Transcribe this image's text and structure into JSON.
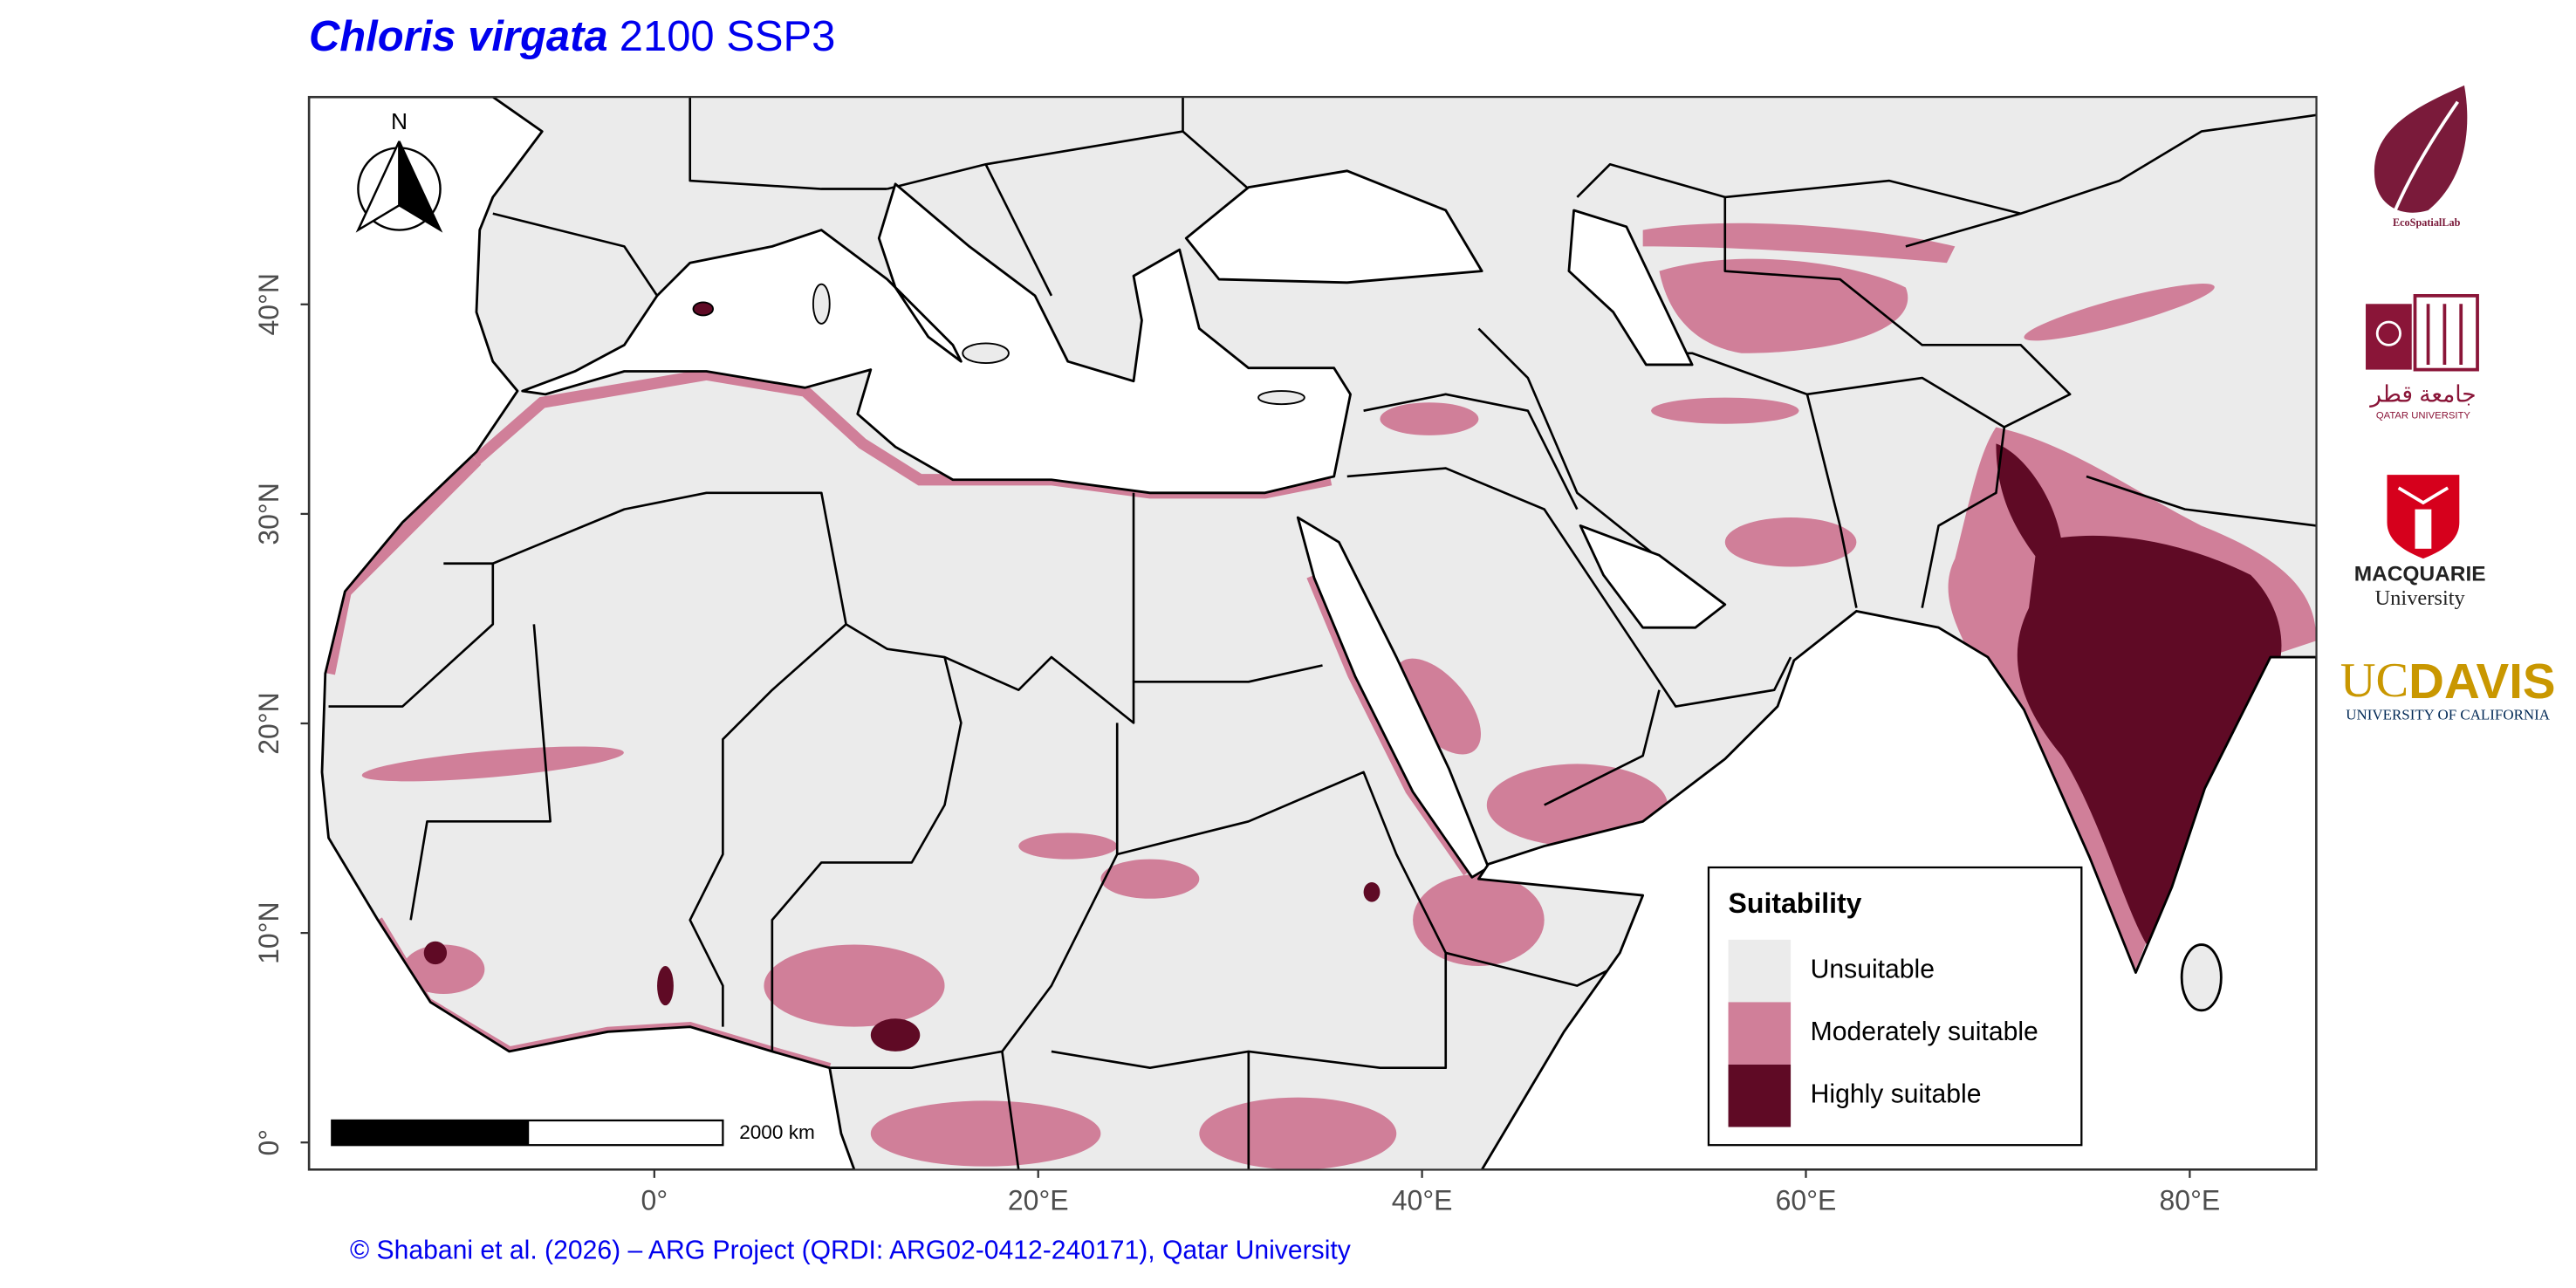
{
  "title": {
    "species": "Chloris virgata",
    "scenario": "2100 SSP3"
  },
  "map": {
    "xlim": [
      -18,
      86.6
    ],
    "ylim": [
      -1.3,
      49.9
    ],
    "xticks": [
      {
        "value": 0,
        "label": "0°"
      },
      {
        "value": 20,
        "label": "20°E"
      },
      {
        "value": 40,
        "label": "40°E"
      },
      {
        "value": 60,
        "label": "60°E"
      },
      {
        "value": 80,
        "label": "80°E"
      }
    ],
    "yticks": [
      {
        "value": 0,
        "label": "0°"
      },
      {
        "value": 10,
        "label": "10°N"
      },
      {
        "value": 20,
        "label": "20°N"
      },
      {
        "value": 30,
        "label": "30°N"
      },
      {
        "value": 40,
        "label": "40°N"
      }
    ]
  },
  "north_arrow": "N",
  "scale_bar": "2000 km",
  "legend": {
    "title": "Suitability",
    "items": [
      {
        "name": "Unsuitable",
        "color": "#ebebeb"
      },
      {
        "name": "Moderately suitable",
        "color": "#d07f99"
      },
      {
        "name": "Highly suitable",
        "color": "#5f0a25"
      }
    ]
  },
  "credit": "© Shabani et al. (2026) – ARG Project (QRDI: ARG02-0412-240171), Qatar University",
  "logos": {
    "ecospatiallab": "EcoSpatialLab",
    "qatar_arabic": "جامعة قطر",
    "qatar": "QATAR UNIVERSITY",
    "macquarie": "MACQUARIE",
    "macquarie_sub": "University",
    "ucdavis_uc": "UC",
    "ucdavis_davis": "DAVIS",
    "ucdavis_sub": "UNIVERSITY OF CALIFORNIA"
  }
}
